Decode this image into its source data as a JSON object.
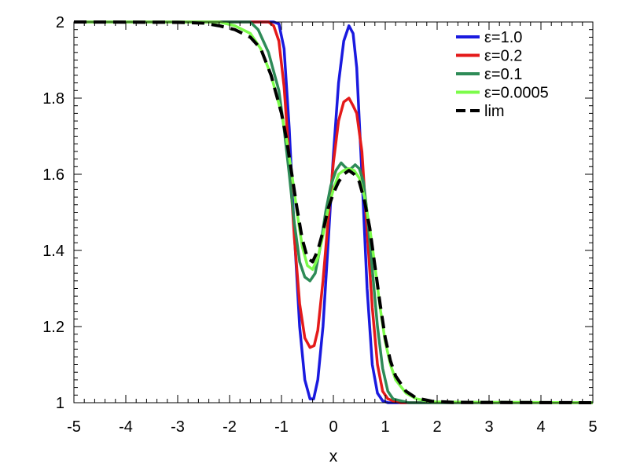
{
  "chart_data": {
    "type": "line",
    "title": "",
    "xlabel": "x",
    "ylabel": "",
    "xlim": [
      -5,
      5
    ],
    "ylim": [
      1,
      2
    ],
    "x_ticks": [
      "-5",
      "-4",
      "-3",
      "-2",
      "-1",
      "0",
      "1",
      "2",
      "3",
      "4",
      "5"
    ],
    "y_ticks": [
      "1",
      "1.2",
      "1.4",
      "1.6",
      "1.8",
      "2"
    ],
    "grid": false,
    "legend_position": "top-right",
    "series": [
      {
        "name": "ε=1.0",
        "color": "#1a1adf",
        "dash": "solid",
        "x": [
          -5,
          -1.15,
          -1.05,
          -0.95,
          -0.85,
          -0.75,
          -0.65,
          -0.55,
          -0.45,
          -0.38,
          -0.3,
          -0.2,
          -0.1,
          0,
          0.1,
          0.2,
          0.3,
          0.38,
          0.45,
          0.55,
          0.65,
          0.75,
          0.85,
          0.95,
          1.05,
          1.15,
          5
        ],
        "y": [
          2,
          2,
          1.995,
          1.93,
          1.72,
          1.44,
          1.2,
          1.06,
          1.01,
          1.01,
          1.06,
          1.2,
          1.42,
          1.65,
          1.84,
          1.95,
          1.99,
          1.97,
          1.88,
          1.6,
          1.3,
          1.1,
          1.025,
          1.005,
          1.0,
          1.0,
          1.0
        ]
      },
      {
        "name": "ε=0.2",
        "color": "#e41a1a",
        "dash": "solid",
        "x": [
          -5,
          -1.25,
          -1.15,
          -1.05,
          -0.95,
          -0.85,
          -0.75,
          -0.65,
          -0.55,
          -0.45,
          -0.37,
          -0.3,
          -0.2,
          -0.1,
          0,
          0.1,
          0.2,
          0.3,
          0.38,
          0.45,
          0.55,
          0.65,
          0.75,
          0.85,
          0.95,
          1.05,
          1.15,
          1.3,
          5
        ],
        "y": [
          2,
          2,
          1.99,
          1.95,
          1.83,
          1.64,
          1.43,
          1.26,
          1.17,
          1.145,
          1.15,
          1.19,
          1.32,
          1.48,
          1.63,
          1.74,
          1.79,
          1.8,
          1.78,
          1.76,
          1.66,
          1.45,
          1.25,
          1.1,
          1.03,
          1.01,
          1.005,
          1.0,
          1.0
        ]
      },
      {
        "name": "ε=0.1",
        "color": "#2e8b57",
        "dash": "solid",
        "x": [
          -5,
          -1.6,
          -1.45,
          -1.35,
          -1.25,
          -1.15,
          -1.05,
          -0.95,
          -0.85,
          -0.75,
          -0.65,
          -0.55,
          -0.45,
          -0.35,
          -0.25,
          -0.15,
          -0.05,
          0.05,
          0.15,
          0.22,
          0.3,
          0.42,
          0.5,
          0.58,
          0.65,
          0.75,
          0.85,
          0.95,
          1.05,
          1.15,
          1.3,
          1.45,
          5
        ],
        "y": [
          2,
          2,
          1.98,
          1.95,
          1.92,
          1.87,
          1.82,
          1.72,
          1.6,
          1.47,
          1.37,
          1.33,
          1.32,
          1.34,
          1.41,
          1.5,
          1.57,
          1.61,
          1.63,
          1.62,
          1.61,
          1.625,
          1.615,
          1.58,
          1.5,
          1.35,
          1.2,
          1.09,
          1.03,
          1.01,
          1.005,
          1.0,
          1.0
        ]
      },
      {
        "name": "ε=0.0005",
        "color": "#7cfc4a",
        "dash": "solid",
        "x": [
          -5,
          -2.2,
          -1.9,
          -1.6,
          -1.4,
          -1.2,
          -1.0,
          -0.9,
          -0.8,
          -0.7,
          -0.6,
          -0.5,
          -0.4,
          -0.3,
          -0.2,
          -0.1,
          0,
          0.1,
          0.2,
          0.3,
          0.4,
          0.5,
          0.6,
          0.7,
          0.8,
          0.9,
          1.0,
          1.1,
          1.2,
          1.4,
          1.6,
          1.9,
          5
        ],
        "y": [
          2,
          2,
          1.99,
          1.97,
          1.93,
          1.86,
          1.76,
          1.69,
          1.6,
          1.5,
          1.41,
          1.36,
          1.35,
          1.38,
          1.44,
          1.51,
          1.56,
          1.6,
          1.61,
          1.615,
          1.61,
          1.59,
          1.54,
          1.46,
          1.36,
          1.25,
          1.16,
          1.1,
          1.06,
          1.025,
          1.01,
          1.002,
          1.0
        ]
      },
      {
        "name": "lim",
        "color": "#000000",
        "dash": "dashed",
        "x": [
          -5,
          -3,
          -2.5,
          -2.2,
          -1.9,
          -1.6,
          -1.4,
          -1.2,
          -1.0,
          -0.9,
          -0.8,
          -0.7,
          -0.6,
          -0.5,
          -0.4,
          -0.3,
          -0.2,
          -0.1,
          0,
          0.1,
          0.2,
          0.3,
          0.4,
          0.5,
          0.6,
          0.7,
          0.8,
          0.9,
          1.0,
          1.1,
          1.2,
          1.4,
          1.6,
          1.9,
          2.3,
          5
        ],
        "y": [
          2,
          1.999,
          1.997,
          1.99,
          1.98,
          1.96,
          1.93,
          1.86,
          1.76,
          1.69,
          1.6,
          1.51,
          1.43,
          1.38,
          1.37,
          1.4,
          1.45,
          1.51,
          1.55,
          1.58,
          1.6,
          1.61,
          1.6,
          1.58,
          1.53,
          1.46,
          1.36,
          1.26,
          1.17,
          1.11,
          1.07,
          1.03,
          1.012,
          1.004,
          1.001,
          1.0
        ]
      }
    ]
  }
}
